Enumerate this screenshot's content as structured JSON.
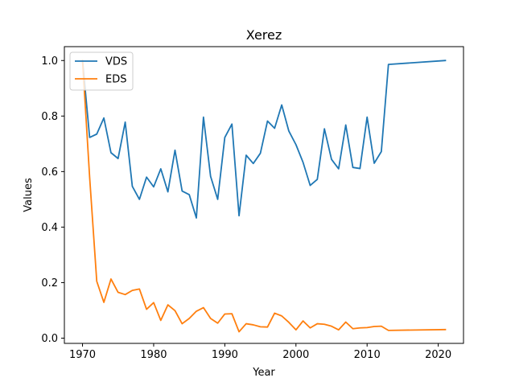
{
  "chart_data": {
    "type": "line",
    "title": "Xerez",
    "xlabel": "Year",
    "ylabel": "Values",
    "xlim": [
      1967.45,
      2023.55
    ],
    "ylim": [
      -0.0188,
      1.05
    ],
    "xticks": [
      1970,
      1980,
      1990,
      2000,
      2010,
      2020
    ],
    "xtick_labels": [
      "1970",
      "1980",
      "1990",
      "2000",
      "2010",
      "2020"
    ],
    "yticks": [
      0.0,
      0.2,
      0.4,
      0.6,
      0.8,
      1.0
    ],
    "ytick_labels": [
      "0.0",
      "0.2",
      "0.4",
      "0.6",
      "0.8",
      "1.0"
    ],
    "grid": false,
    "legend_position": "top-left",
    "x": [
      1970,
      1971,
      1972,
      1973,
      1974,
      1975,
      1976,
      1977,
      1978,
      1979,
      1980,
      1981,
      1982,
      1983,
      1984,
      1985,
      1986,
      1987,
      1988,
      1989,
      1990,
      1991,
      1992,
      1993,
      1994,
      1995,
      1996,
      1997,
      1998,
      1999,
      2000,
      2001,
      2002,
      2003,
      2004,
      2005,
      2006,
      2007,
      2008,
      2009,
      2010,
      2011,
      2012,
      2013,
      2021
    ],
    "series": [
      {
        "name": "VDS",
        "color": "#1f77b4",
        "values": [
          1.0,
          0.723,
          0.735,
          0.793,
          0.668,
          0.647,
          0.778,
          0.547,
          0.5,
          0.58,
          0.545,
          0.61,
          0.527,
          0.677,
          0.53,
          0.517,
          0.433,
          0.796,
          0.583,
          0.5,
          0.723,
          0.771,
          0.441,
          0.659,
          0.629,
          0.666,
          0.782,
          0.756,
          0.84,
          0.746,
          0.697,
          0.633,
          0.55,
          0.572,
          0.754,
          0.644,
          0.61,
          0.768,
          0.615,
          0.611,
          0.796,
          0.63,
          0.672,
          0.986,
          1.0
        ]
      },
      {
        "name": "EDS",
        "color": "#ff7f0e",
        "values": [
          1.0,
          0.58,
          0.205,
          0.129,
          0.213,
          0.165,
          0.157,
          0.172,
          0.177,
          0.104,
          0.128,
          0.064,
          0.12,
          0.099,
          0.052,
          0.071,
          0.097,
          0.11,
          0.071,
          0.054,
          0.087,
          0.088,
          0.023,
          0.052,
          0.048,
          0.041,
          0.04,
          0.09,
          0.08,
          0.057,
          0.03,
          0.062,
          0.037,
          0.052,
          0.05,
          0.043,
          0.03,
          0.058,
          0.034,
          0.037,
          0.038,
          0.042,
          0.043,
          0.028,
          0.031
        ]
      }
    ]
  }
}
